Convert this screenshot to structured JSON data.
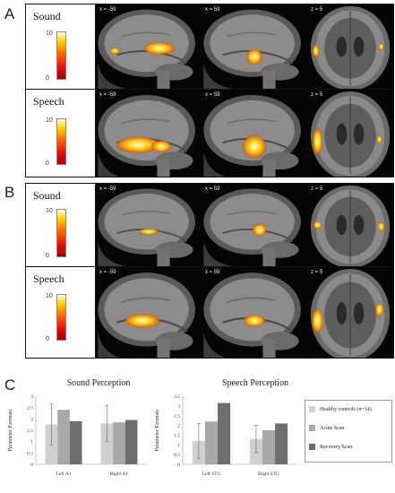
{
  "panels": {
    "a": {
      "letter": "A"
    },
    "b": {
      "letter": "B"
    },
    "c": {
      "letter": "C"
    }
  },
  "brain_rows": {
    "a_sound": {
      "title": "Sound",
      "cbar_max": "10",
      "cbar_min": "0",
      "coords": [
        "x = -59",
        "x = 59",
        "z = 5"
      ]
    },
    "a_speech": {
      "title": "Speech",
      "cbar_max": "10",
      "cbar_min": "0",
      "coords": [
        "x = -59",
        "x = 59",
        "z = 5"
      ]
    },
    "b_sound": {
      "title": "Sound",
      "cbar_max": "10",
      "cbar_min": "0",
      "coords": [
        "x = -59",
        "x = 59",
        "z = 5"
      ]
    },
    "b_speech": {
      "title": "Speech",
      "cbar_max": "10",
      "cbar_min": "0",
      "coords": [
        "x = -59",
        "x = 59",
        "z = 5"
      ]
    }
  },
  "legend": {
    "items": [
      {
        "label": "Healthy controls (n=14)",
        "color": "#d0d0d0"
      },
      {
        "label": "Acute Scan",
        "color": "#a8a8a8"
      },
      {
        "label": "Recovery Scan",
        "color": "#6e6e6e"
      }
    ]
  },
  "chart_data": [
    {
      "type": "bar",
      "title": "Sound Perception",
      "ylabel": "Parameter Estimate",
      "ylim": [
        0,
        3
      ],
      "yticks": [
        "0",
        "0.5",
        "1",
        "1.5",
        "2",
        "2.5",
        "3"
      ],
      "categories": [
        "Left A1",
        "Right A1"
      ],
      "series": [
        {
          "name": "Healthy controls (n=14)",
          "values": [
            1.75,
            1.8
          ],
          "error": [
            0.9,
            0.8
          ]
        },
        {
          "name": "Acute Scan",
          "values": [
            2.4,
            1.85
          ]
        },
        {
          "name": "Recovery Scan",
          "values": [
            1.9,
            1.95
          ]
        }
      ]
    },
    {
      "type": "bar",
      "title": "Speech Perception",
      "ylabel": "Parameter Estimate",
      "ylim": [
        0,
        3.5
      ],
      "yticks": [
        "0",
        "0.5",
        "1",
        "1.5",
        "2",
        "2.5",
        "3",
        "3.5"
      ],
      "categories": [
        "Left STG",
        "Right STG"
      ],
      "series": [
        {
          "name": "Healthy controls (n=14)",
          "values": [
            1.2,
            1.3
          ],
          "error": [
            0.9,
            0.7
          ]
        },
        {
          "name": "Acute Scan",
          "values": [
            2.2,
            1.75
          ]
        },
        {
          "name": "Recovery Scan",
          "values": [
            3.15,
            2.1
          ]
        }
      ]
    }
  ]
}
